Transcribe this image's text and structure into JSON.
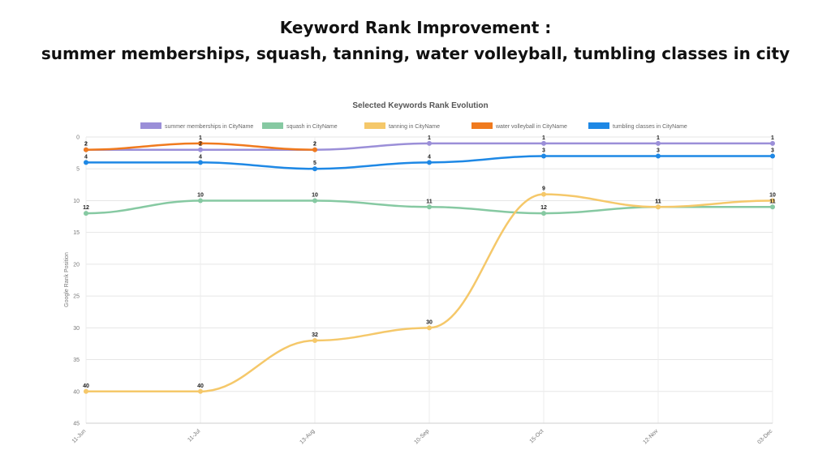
{
  "header": {
    "title_line_1": "Keyword Rank Improvement :",
    "title_line_2": "summer memberships, squash, tanning, water volleyball, tumbling classes in city"
  },
  "chart_data": {
    "type": "line",
    "title": "Selected Keywords Rank Evolution",
    "ylabel": "Google Rank Position",
    "xlabel": "",
    "ylim": [
      0,
      45
    ],
    "y_reversed": true,
    "yticks": [
      0,
      5,
      10,
      15,
      20,
      25,
      30,
      35,
      40,
      45
    ],
    "categories": [
      "11-Jun",
      "11-Jul",
      "13-Aug",
      "10-Sep",
      "15-Oct",
      "12-Nov",
      "03-Dec"
    ],
    "legend_position": "top",
    "grid": true,
    "series": [
      {
        "name": "summer memberships in CityName",
        "color": "#9b8fd8",
        "values": [
          2,
          2,
          2,
          1,
          1,
          1,
          1
        ]
      },
      {
        "name": "squash in CityName",
        "color": "#86c9a2",
        "values": [
          12,
          10,
          10,
          11,
          12,
          11,
          11
        ]
      },
      {
        "name": "tanning in CityName",
        "color": "#f5c86a",
        "values": [
          40,
          40,
          32,
          30,
          9,
          11,
          10
        ]
      },
      {
        "name": "water volleyball in CityName",
        "color": "#f07a1e",
        "values": [
          2,
          1,
          2,
          null,
          null,
          null,
          null
        ]
      },
      {
        "name": "tumbling classes in CityName",
        "color": "#1e88e5",
        "values": [
          4,
          4,
          5,
          4,
          3,
          3,
          3
        ]
      }
    ]
  }
}
